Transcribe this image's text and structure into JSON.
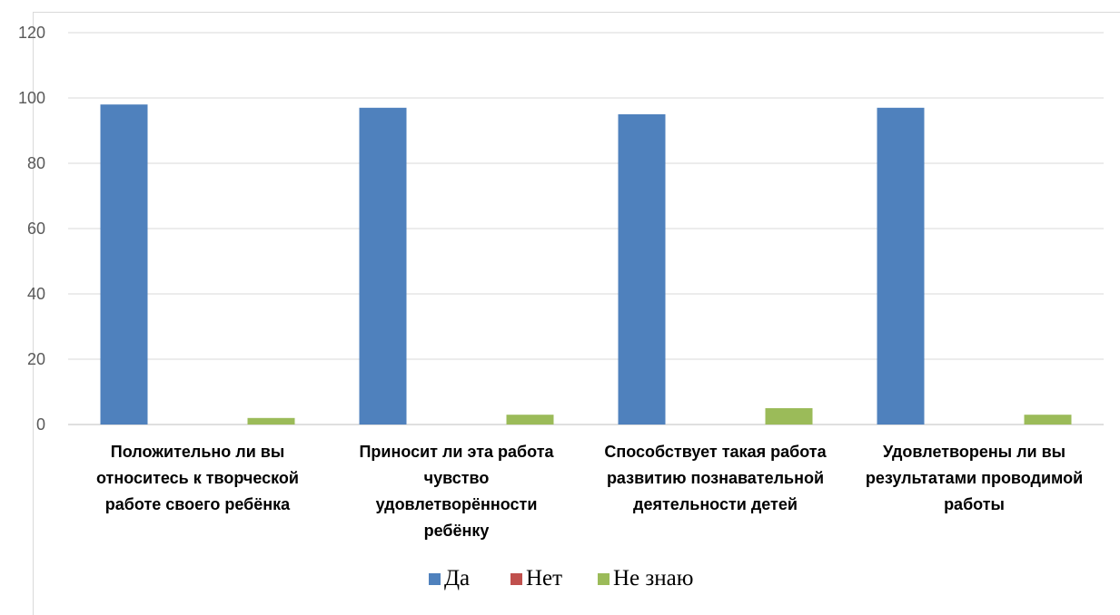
{
  "chart_data": {
    "type": "bar",
    "title": "",
    "xlabel": "",
    "ylabel": "",
    "ylim": [
      0,
      120
    ],
    "yticks": [
      0,
      20,
      40,
      60,
      80,
      100,
      120
    ],
    "grid": true,
    "legend_position": "bottom",
    "categories": [
      [
        "Положительно ли вы",
        "относитесь к творческой",
        "работе своего ребёнка"
      ],
      [
        "Приносит ли эта работа",
        "чувство",
        "удовлетворённости",
        "ребёнку"
      ],
      [
        "Способствует такая работа",
        "развитию познавательной",
        "деятельности детей"
      ],
      [
        "Удовлетворены ли вы",
        "результатами проводимой",
        "работы"
      ]
    ],
    "series": [
      {
        "name": "Да",
        "color": "#4f81bd",
        "values": [
          98,
          97,
          95,
          97
        ]
      },
      {
        "name": "Нет",
        "color": "#c0504d",
        "values": [
          0,
          0,
          0,
          0
        ]
      },
      {
        "name": "Не знаю",
        "color": "#9bbb59",
        "values": [
          2,
          3,
          5,
          3
        ]
      }
    ]
  }
}
